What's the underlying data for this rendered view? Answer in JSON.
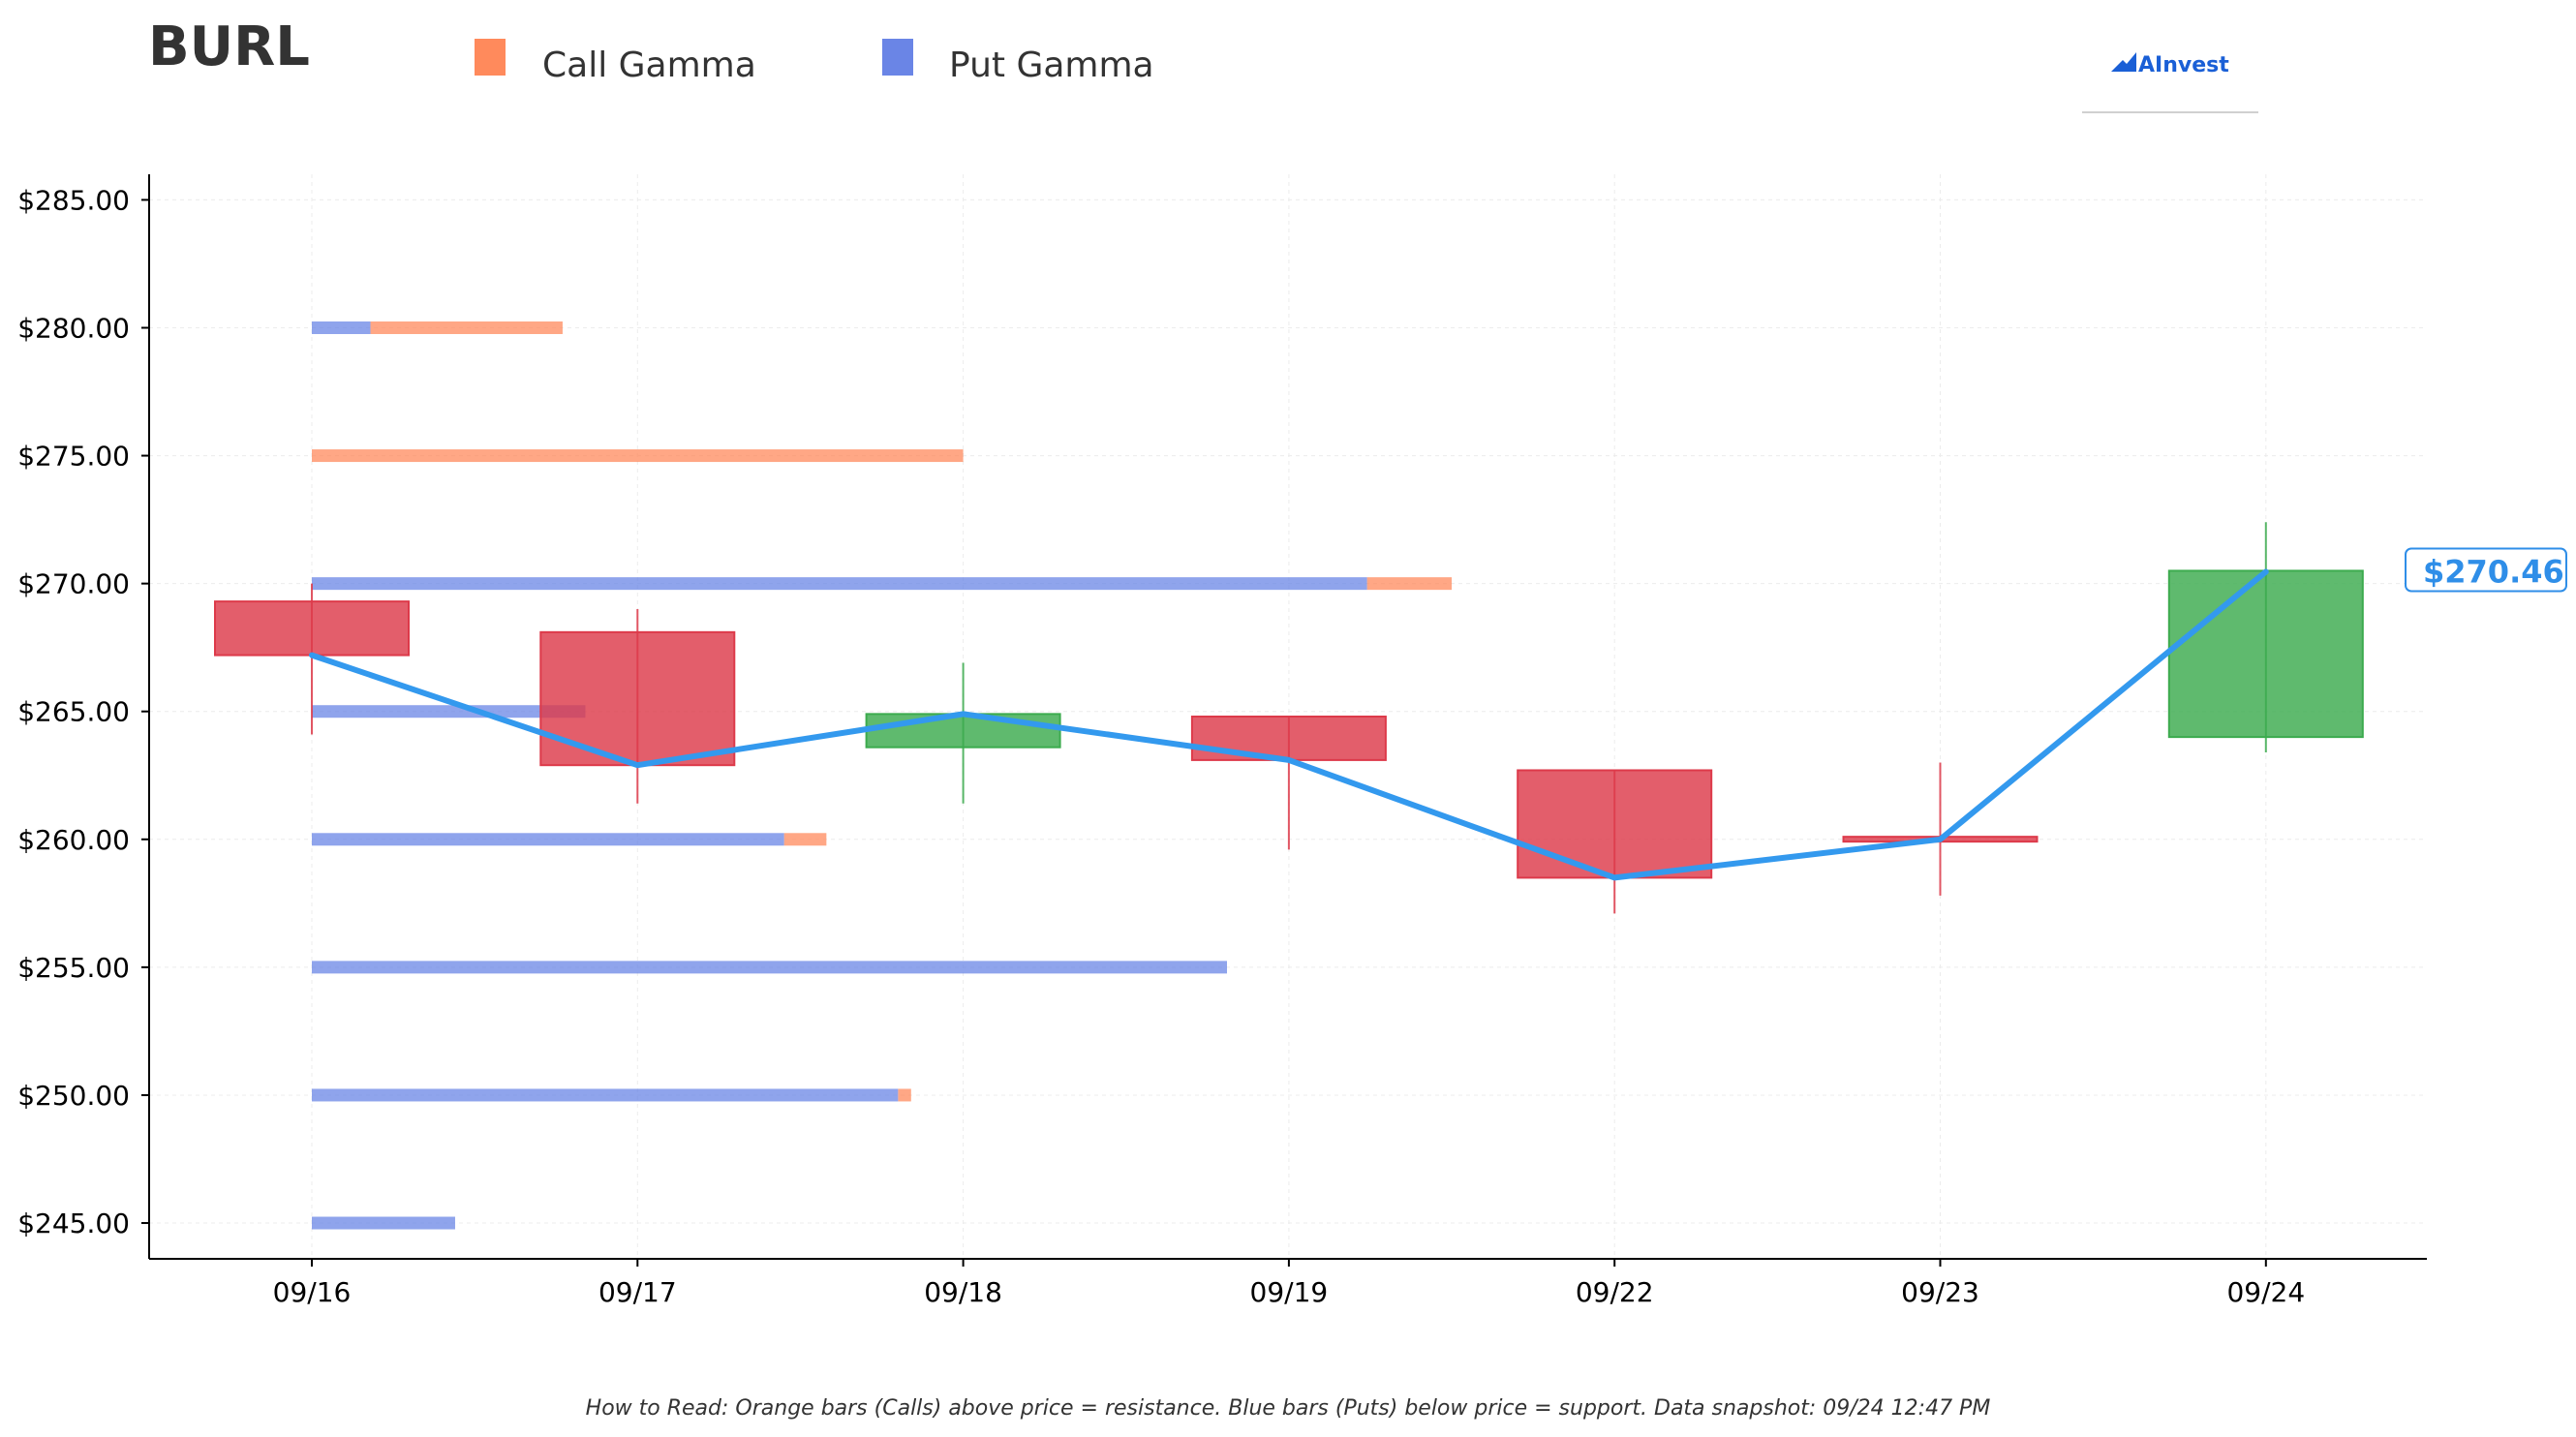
{
  "chart_data": {
    "type": "candlestick",
    "title": "BURL",
    "legend": [
      {
        "name": "Call Gamma",
        "color": "#ff8a5c"
      },
      {
        "name": "Put Gamma",
        "color": "#6a85e6"
      }
    ],
    "legend_placement": "top-left",
    "categories": [
      "09/16",
      "09/17",
      "09/18",
      "09/19",
      "09/22",
      "09/23",
      "09/24"
    ],
    "y_tick_labels": [
      "$245.00",
      "$250.00",
      "$255.00",
      "$260.00",
      "$265.00",
      "$270.00",
      "$275.00",
      "$280.00",
      "$285.00"
    ],
    "y_ticks": [
      245,
      250,
      255,
      260,
      265,
      270,
      275,
      280,
      285
    ],
    "ylim": [
      243.6,
      286.0
    ],
    "grid": true,
    "candles": [
      {
        "date": "09/16",
        "open": 269.3,
        "close": 267.2,
        "high": 270.0,
        "low": 264.1
      },
      {
        "date": "09/17",
        "open": 268.1,
        "close": 262.9,
        "high": 269.0,
        "low": 261.4
      },
      {
        "date": "09/18",
        "open": 263.6,
        "close": 264.9,
        "high": 266.9,
        "low": 261.4
      },
      {
        "date": "09/19",
        "open": 264.8,
        "close": 263.1,
        "high": 264.8,
        "low": 259.6
      },
      {
        "date": "09/22",
        "open": 262.7,
        "close": 258.5,
        "high": 262.7,
        "low": 257.1
      },
      {
        "date": "09/23",
        "open": 260.1,
        "close": 260.0,
        "high": 263.0,
        "low": 257.8
      },
      {
        "date": "09/24",
        "open": 264.0,
        "close": 270.5,
        "high": 272.4,
        "low": 263.4
      }
    ],
    "close_line": {
      "color": "#3399ee",
      "values": [
        267.2,
        262.9,
        264.9,
        263.1,
        258.5,
        260.0,
        270.46
      ]
    },
    "current_price": {
      "value": 270.46,
      "label": "$270.46"
    },
    "gamma_bars": [
      {
        "strike": 280,
        "put": 0.18,
        "call": 0.77
      },
      {
        "strike": 275,
        "put": 0.0,
        "call": 2.0
      },
      {
        "strike": 270,
        "put": 3.24,
        "call": 3.5
      },
      {
        "strike": 265,
        "put": 0.84,
        "call": 0.84
      },
      {
        "strike": 260,
        "put": 1.45,
        "call": 1.58
      },
      {
        "strike": 255,
        "put": 2.81,
        "call": 2.81
      },
      {
        "strike": 250,
        "put": 1.8,
        "call": 1.84
      },
      {
        "strike": 245,
        "put": 0.44,
        "call": 0.44
      }
    ],
    "colors": {
      "bull": "#3cab4e",
      "bear": "#dd3a4a",
      "call": "#ff8a5c",
      "put": "#6a85e6"
    }
  },
  "branding": {
    "logo_text": "AInvest"
  },
  "footer_text": "How to Read: Orange bars (Calls) above price = resistance. Blue bars (Puts) below price = support. Data snapshot: 09/24 12:47 PM"
}
